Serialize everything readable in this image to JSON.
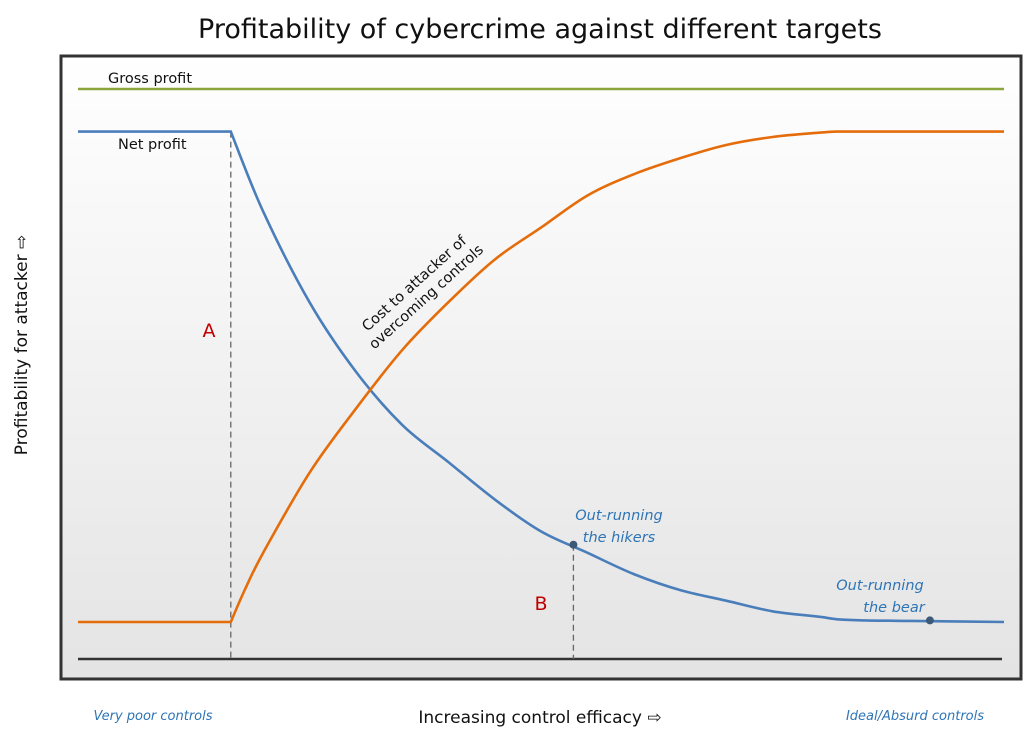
{
  "chart_data": {
    "type": "line",
    "title": "Profitability of cybercrime against different targets",
    "xlabel": "Increasing control efficacy ⇨",
    "ylabel": "Profitability for attacker ⇨",
    "x_start_label": "Very poor controls",
    "x_end_label": "Ideal/Absurd controls",
    "grid": false,
    "legend": "none",
    "series": [
      {
        "name": "Gross profit",
        "color": "#8aa63c",
        "x": [
          0,
          100
        ],
        "y": [
          100,
          100
        ]
      },
      {
        "name": "Net profit",
        "color": "#4a7ebb",
        "x": [
          0,
          16.5,
          20,
          25,
          30,
          35,
          40,
          45,
          50,
          55,
          60,
          65,
          70,
          75,
          80,
          82,
          85,
          90,
          100
        ],
        "y": [
          92,
          92,
          77,
          60,
          47,
          37,
          30,
          23,
          17,
          13,
          9,
          6,
          4,
          2,
          1,
          0.5,
          0.3,
          0.2,
          0
        ]
      },
      {
        "name": "Cost to attacker of overcoming controls",
        "color": "#e46c0a",
        "x": [
          0,
          16.5,
          18,
          20,
          25,
          30,
          35,
          40,
          45,
          50,
          55,
          60,
          65,
          70,
          75,
          80,
          82,
          85,
          90,
          100
        ],
        "y": [
          0,
          0,
          6,
          13,
          28,
          40,
          51,
          60,
          68,
          74,
          80,
          84,
          87,
          89.5,
          91,
          91.8,
          92,
          92,
          92,
          92
        ]
      }
    ],
    "markers": [
      {
        "label": "A",
        "x": 16.5,
        "y": 46
      },
      {
        "label": "B",
        "x": 53.5,
        "y": 4
      }
    ],
    "annotations": [
      {
        "text": [
          "Out-running",
          "the hikers"
        ],
        "x": 53.5,
        "y": 14.5
      },
      {
        "text": [
          "Out-running",
          "the bear"
        ],
        "x": 92,
        "y": 0.3
      }
    ],
    "curve_labels": {
      "gross": "Gross profit",
      "net": "Net profit",
      "cost": [
        "Cost to attacker of",
        "overcoming controls"
      ]
    }
  }
}
